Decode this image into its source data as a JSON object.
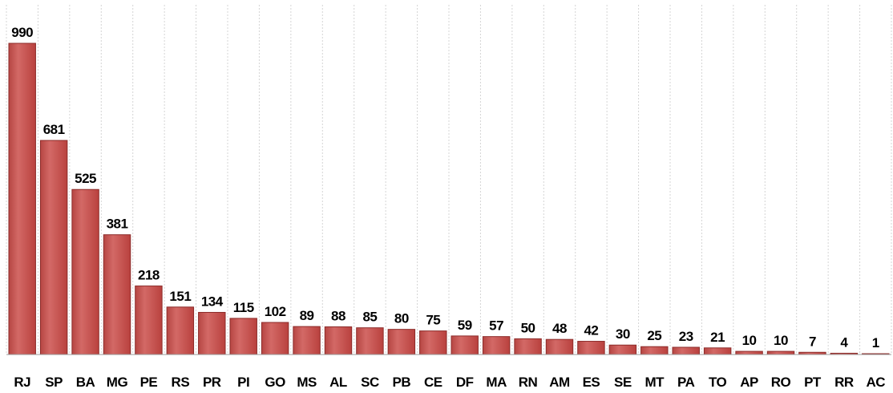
{
  "chart_data": {
    "type": "bar",
    "categories": [
      "RJ",
      "SP",
      "BA",
      "MG",
      "PE",
      "RS",
      "PR",
      "PI",
      "GO",
      "MS",
      "AL",
      "SC",
      "PB",
      "CE",
      "DF",
      "MA",
      "RN",
      "AM",
      "ES",
      "SE",
      "MT",
      "PA",
      "TO",
      "AP",
      "RO",
      "PT",
      "RR",
      "AC"
    ],
    "values": [
      990,
      681,
      525,
      381,
      218,
      151,
      134,
      115,
      102,
      89,
      88,
      85,
      80,
      75,
      59,
      57,
      50,
      48,
      42,
      30,
      25,
      23,
      21,
      10,
      10,
      7,
      4,
      1
    ],
    "title": "",
    "xlabel": "",
    "ylabel": "",
    "ylim": [
      0,
      1000
    ],
    "grid": "vertical-dashed",
    "legend": "none",
    "bar_color": "#c0504d",
    "bar_edge_color": "#8c2b29"
  }
}
